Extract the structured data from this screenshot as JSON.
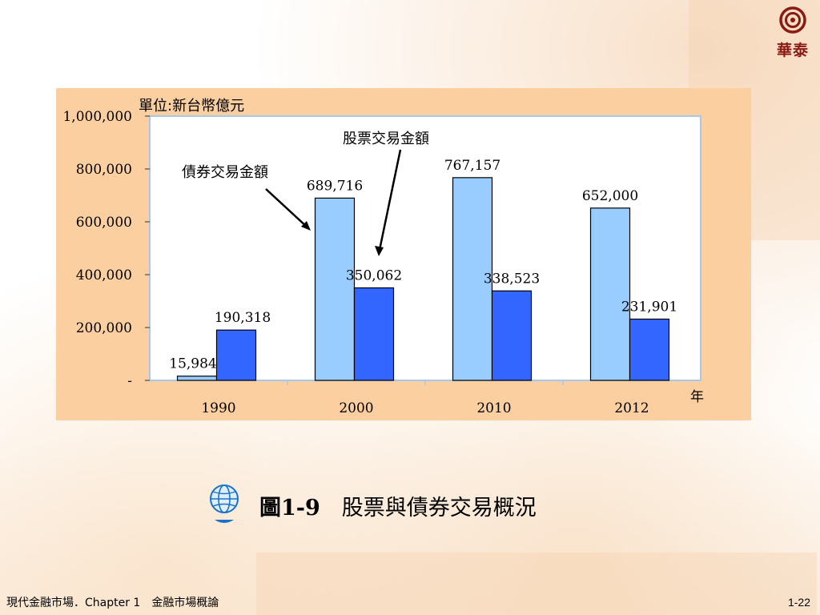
{
  "logo": {
    "text": "華泰"
  },
  "caption": {
    "number": "圖1-9",
    "title": "股票與債券交易概況"
  },
  "footer": {
    "left": "現代金融市場．Chapter 1　金融市場概論",
    "page": "1-22"
  },
  "chart_data": {
    "type": "bar",
    "title": "",
    "unit_label": "單位:新台幣億元",
    "xlabel": "年",
    "ylabel": "",
    "ylim": [
      0,
      1000000
    ],
    "yticks": [
      0,
      200000,
      400000,
      600000,
      800000,
      1000000
    ],
    "ytick_labels": [
      "-",
      "200,000",
      "400,000",
      "600,000",
      "800,000",
      "1,000,000"
    ],
    "categories": [
      "1990",
      "2000",
      "2010",
      "2012"
    ],
    "series": [
      {
        "name": "債券交易金額",
        "color": "#99ccff",
        "values": [
          15984,
          689716,
          767157,
          652000
        ],
        "labels": [
          "15,984",
          "689,716",
          "767,157",
          "652,000"
        ]
      },
      {
        "name": "股票交易金額",
        "color": "#3366ff",
        "values": [
          190318,
          350062,
          338523,
          231901
        ],
        "labels": [
          "190,318",
          "350,062",
          "338,523",
          "231,901"
        ]
      }
    ],
    "grid": false
  }
}
